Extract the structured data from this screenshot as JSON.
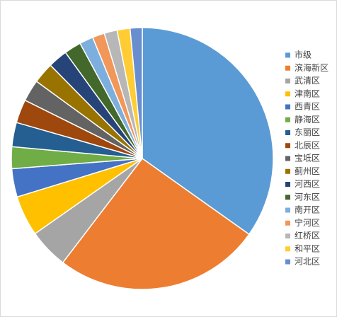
{
  "chart_data": {
    "type": "pie",
    "categories": [
      "市级",
      "滨海新区",
      "武清区",
      "津南区",
      "西青区",
      "静海区",
      "东丽区",
      "北辰区",
      "宝坻区",
      "蓟州区",
      "河西区",
      "河东区",
      "南开区",
      "宁河区",
      "红桥区",
      "和平区",
      "河北区"
    ],
    "values": [
      34.9,
      25.6,
      4.9,
      5.0,
      3.5,
      2.7,
      3.0,
      2.9,
      2.7,
      2.6,
      2.4,
      2.1,
      1.7,
      1.5,
      1.6,
      1.6,
      1.5
    ],
    "colors": [
      "#5b9bd5",
      "#ed7d31",
      "#a5a5a5",
      "#ffc000",
      "#4472c4",
      "#70ad47",
      "#255e91",
      "#9e480e",
      "#636363",
      "#997300",
      "#264478",
      "#43682b",
      "#7cafdd",
      "#f1975a",
      "#b7b7b7",
      "#ffcd33",
      "#698ed0"
    ],
    "legend": "right"
  }
}
